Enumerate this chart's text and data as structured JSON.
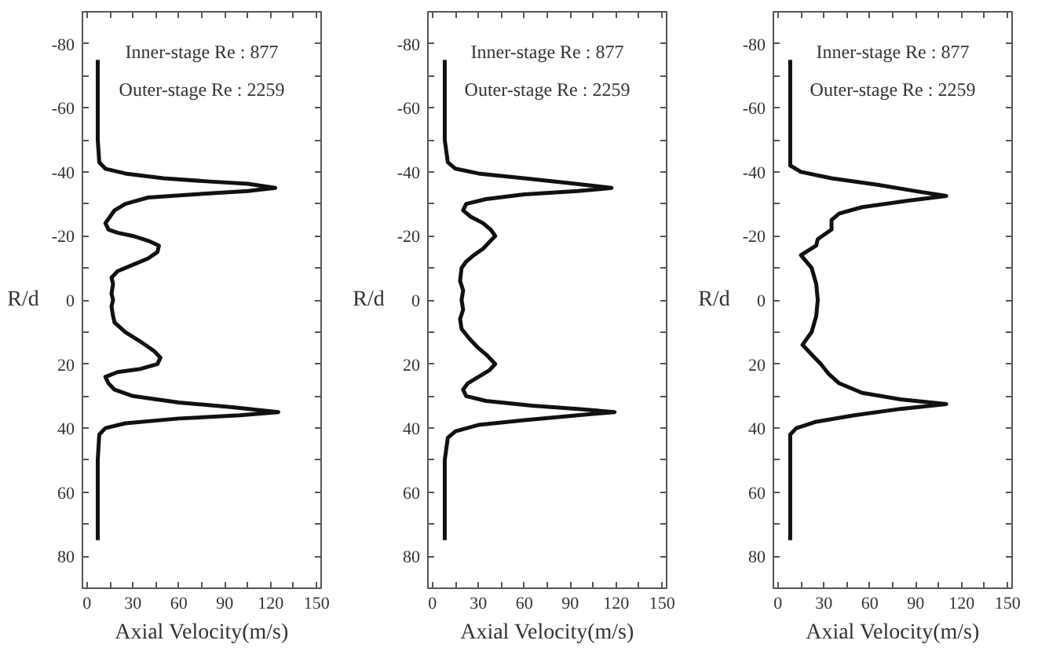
{
  "chart_data": [
    {
      "type": "line",
      "xlabel": "Axial Velocity(m/s)",
      "ylabel": "R/d",
      "annotations": [
        "Inner-stage Re : 877",
        "Outer-stage Re : 2259"
      ],
      "xlim": [
        -3,
        153
      ],
      "ylim": [
        90,
        -90
      ],
      "xticks": [
        0,
        {
          "value": 15,
          "label": null
        },
        30,
        {
          "value": 45,
          "label": null
        },
        60,
        {
          "value": 75,
          "label": null
        },
        90,
        {
          "value": 105,
          "label": null
        },
        120,
        {
          "value": 135,
          "label": null
        },
        150
      ],
      "yticks": [
        -80,
        {
          "value": -70,
          "label": null
        },
        -60,
        {
          "value": -50,
          "label": null
        },
        -40,
        {
          "value": -30,
          "label": null
        },
        -20,
        {
          "value": -10,
          "label": null
        },
        0,
        {
          "value": 10,
          "label": null
        },
        20,
        {
          "value": 30,
          "label": null
        },
        40,
        {
          "value": 50,
          "label": null
        },
        60,
        {
          "value": 70,
          "label": null
        },
        80
      ],
      "grid": false,
      "marker": "none",
      "line_style": "solid",
      "series": [
        {
          "color": "#111111",
          "x": [
            7,
            7,
            8,
            12,
            25,
            50,
            80,
            105,
            123,
            105,
            70,
            40,
            25,
            18,
            15,
            12,
            14,
            20,
            30,
            40,
            47,
            46,
            40,
            30,
            20,
            16,
            17,
            16,
            17,
            16,
            17,
            18,
            25,
            35,
            44,
            48,
            46,
            35,
            20,
            12,
            14,
            18,
            30,
            60,
            95,
            125,
            100,
            60,
            25,
            12,
            8,
            7,
            7
          ],
          "values": [
            -75,
            -50,
            -43,
            -41,
            -39.5,
            -38,
            -37,
            -36.3,
            -35,
            -34,
            -33,
            -32,
            -30,
            -28,
            -26,
            -24,
            -22,
            -21,
            -20,
            -18.5,
            -17,
            -15,
            -13,
            -11,
            -9,
            -7,
            -5,
            -2,
            0,
            2,
            5,
            7,
            10,
            13,
            16,
            18,
            20,
            21.5,
            22.5,
            24,
            26,
            28,
            30,
            32,
            33.5,
            35,
            36,
            37,
            38.5,
            40,
            42,
            50,
            75
          ]
        }
      ]
    },
    {
      "type": "line",
      "xlabel": "Axial Velocity(m/s)",
      "ylabel": "R/d",
      "annotations": [
        "Inner-stage Re : 877",
        "Outer-stage Re : 2259"
      ],
      "xlim": [
        -3,
        153
      ],
      "ylim": [
        90,
        -90
      ],
      "xticks": [
        0,
        {
          "value": 15,
          "label": null
        },
        30,
        {
          "value": 45,
          "label": null
        },
        60,
        {
          "value": 75,
          "label": null
        },
        90,
        {
          "value": 105,
          "label": null
        },
        120,
        {
          "value": 135,
          "label": null
        },
        150
      ],
      "yticks": [
        -80,
        {
          "value": -70,
          "label": null
        },
        -60,
        {
          "value": -50,
          "label": null
        },
        -40,
        {
          "value": -30,
          "label": null
        },
        -20,
        {
          "value": -10,
          "label": null
        },
        0,
        {
          "value": 10,
          "label": null
        },
        20,
        {
          "value": 30,
          "label": null
        },
        40,
        {
          "value": 50,
          "label": null
        },
        60,
        {
          "value": 70,
          "label": null
        },
        80
      ],
      "grid": false,
      "marker": "none",
      "line_style": "solid",
      "series": [
        {
          "color": "#111111",
          "x": [
            8,
            8,
            10,
            15,
            30,
            60,
            90,
            117,
            95,
            60,
            35,
            22,
            20,
            25,
            33,
            38,
            41,
            37,
            33,
            27,
            22,
            19,
            18,
            20,
            19,
            20,
            18,
            19,
            24,
            30,
            35,
            41,
            37,
            30,
            23,
            20,
            22,
            35,
            65,
            95,
            119,
            95,
            60,
            30,
            15,
            10,
            8,
            8
          ],
          "values": [
            -75,
            -50,
            -43,
            -41,
            -39.5,
            -38,
            -36.5,
            -35,
            -34,
            -33,
            -31.5,
            -30,
            -28,
            -26,
            -24,
            -22,
            -20,
            -18,
            -16,
            -14,
            -12,
            -10,
            -6,
            -3,
            0,
            3,
            6,
            9,
            12,
            15,
            17,
            20,
            22,
            24,
            26,
            28,
            30,
            31.5,
            33,
            34,
            35,
            36,
            37.5,
            39,
            41,
            43,
            50,
            75
          ]
        }
      ]
    },
    {
      "type": "line",
      "xlabel": "Axial Velocity(m/s)",
      "ylabel": "R/d",
      "annotations": [
        "Inner-stage Re : 877",
        "Outer-stage Re : 2259"
      ],
      "xlim": [
        -3,
        153
      ],
      "ylim": [
        90,
        -90
      ],
      "xticks": [
        0,
        {
          "value": 15,
          "label": null
        },
        30,
        {
          "value": 45,
          "label": null
        },
        60,
        {
          "value": 75,
          "label": null
        },
        90,
        {
          "value": 105,
          "label": null
        },
        120,
        {
          "value": 135,
          "label": null
        },
        150
      ],
      "yticks": [
        -80,
        {
          "value": -70,
          "label": null
        },
        -60,
        {
          "value": -50,
          "label": null
        },
        -40,
        {
          "value": -30,
          "label": null
        },
        -20,
        {
          "value": -10,
          "label": null
        },
        0,
        {
          "value": 10,
          "label": null
        },
        20,
        {
          "value": 30,
          "label": null
        },
        40,
        {
          "value": 50,
          "label": null
        },
        60,
        {
          "value": 70,
          "label": null
        },
        80
      ],
      "grid": false,
      "marker": "none",
      "line_style": "solid",
      "series": [
        {
          "color": "#111111",
          "x": [
            8,
            8,
            8,
            15,
            35,
            65,
            90,
            110,
            85,
            55,
            40,
            35,
            35,
            26,
            25,
            15,
            22,
            25,
            26,
            25,
            22,
            16,
            24,
            28,
            33,
            40,
            55,
            80,
            110,
            80,
            50,
            25,
            12,
            8,
            8,
            8
          ],
          "values": [
            -75,
            -50,
            -42,
            -40,
            -38,
            -36,
            -34,
            -32.5,
            -31,
            -29,
            -27,
            -25,
            -22,
            -19,
            -17,
            -14,
            -10,
            -5,
            0,
            5,
            10,
            14,
            18,
            20,
            23,
            26,
            29,
            31,
            32.5,
            34,
            36,
            38,
            40,
            42,
            50,
            75
          ]
        }
      ]
    }
  ]
}
